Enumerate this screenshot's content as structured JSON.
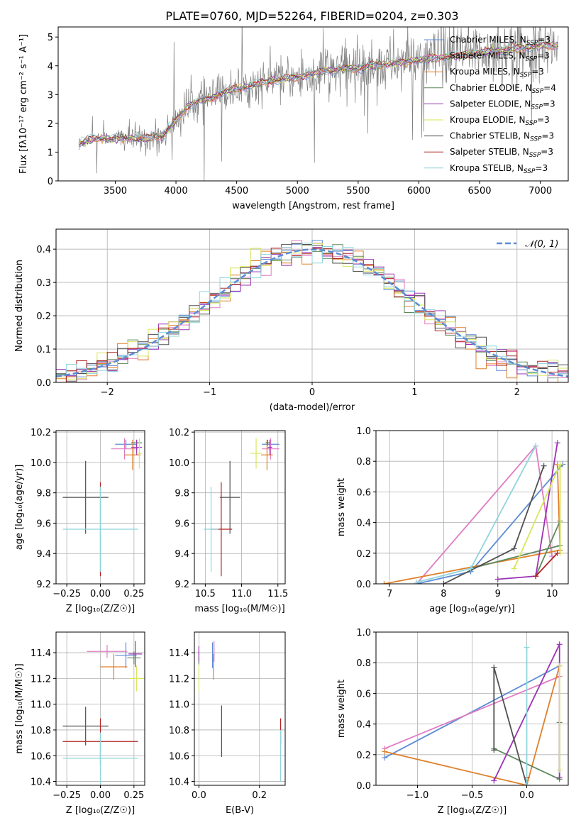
{
  "figure_title": "PLATE=0760, MJD=52264, FIBERID=0204, z=0.303",
  "colors": {
    "chabrier_miles": "#5b8bd6",
    "salpeter_miles": "#e07bc2",
    "kroupa_miles": "#e0802a",
    "chabrier_elodie": "#5e8a5e",
    "salpeter_elodie": "#9b32b4",
    "kroupa_elodie": "#d8e65a",
    "chabrier_stelib": "#505050",
    "salpeter_stelib": "#b22222",
    "kroupa_stelib": "#8fd4dc",
    "data_spectrum": "#808080",
    "gaussian": "#5b8bd6"
  },
  "chart_data": [
    {
      "id": "spectrum",
      "type": "line",
      "xlabel": "wavelength [Angstrom, rest frame]",
      "ylabel": "Flux [fλ10⁻¹⁷ erg cm⁻² s⁻¹ A⁻¹]",
      "xlim": [
        3030,
        7230
      ],
      "ylim": [
        0,
        5.35
      ],
      "xticks": [
        3500,
        4000,
        4500,
        5000,
        5500,
        6000,
        6500,
        7000
      ],
      "yticks": [
        0,
        1,
        2,
        3,
        4,
        5
      ],
      "grid": false,
      "legend_position": "top-right",
      "legend": [
        {
          "label": "Chabrier MILES, N_SSP=3",
          "color_key": "chabrier_miles"
        },
        {
          "label": "Salpeter MILES, N_SSP=3",
          "color_key": "salpeter_miles"
        },
        {
          "label": "Kroupa MILES, N_SSP=3",
          "color_key": "kroupa_miles"
        },
        {
          "label": "Chabrier ELODIE, N_SSP=4",
          "color_key": "chabrier_elodie"
        },
        {
          "label": "Salpeter ELODIE, N_SSP=3",
          "color_key": "salpeter_elodie"
        },
        {
          "label": "Kroupa ELODIE, N_SSP=3",
          "color_key": "kroupa_elodie"
        },
        {
          "label": "Chabrier STELIB, N_SSP=3",
          "color_key": "chabrier_stelib"
        },
        {
          "label": "Salpeter STELIB, N_SSP=3",
          "color_key": "salpeter_stelib"
        },
        {
          "label": "Kroupa STELIB, N_SSP=3",
          "color_key": "kroupa_stelib"
        }
      ],
      "continuum": {
        "x": [
          3200,
          3300,
          3400,
          3500,
          3600,
          3700,
          3800,
          3900,
          4000,
          4100,
          4200,
          4300,
          4400,
          4500,
          4600,
          4700,
          4800,
          4900,
          5000,
          5100,
          5200,
          5300,
          5400,
          5500,
          5600,
          5700,
          5800,
          5900,
          6000,
          6100,
          6200,
          6300,
          6400,
          6500,
          6600,
          6700,
          6800,
          6900,
          7000,
          7100
        ],
        "y": [
          1.3,
          1.45,
          1.5,
          1.45,
          1.5,
          1.45,
          1.5,
          1.6,
          2.1,
          2.6,
          2.8,
          2.9,
          3.1,
          3.2,
          3.3,
          3.4,
          3.5,
          3.55,
          3.6,
          3.7,
          3.8,
          3.85,
          3.9,
          3.9,
          4.0,
          4.05,
          4.1,
          4.15,
          4.2,
          4.25,
          4.3,
          4.35,
          4.4,
          4.45,
          4.5,
          4.55,
          4.6,
          4.65,
          4.7,
          4.7
        ]
      },
      "data_range": [
        3200,
        7150
      ]
    },
    {
      "id": "residual-histogram",
      "type": "bar",
      "xlabel": "(data-model)/error",
      "ylabel": "Normed distribution",
      "xlim": [
        -2.5,
        2.5
      ],
      "ylim": [
        0,
        0.46
      ],
      "xticks": [
        -2,
        -1,
        0,
        1,
        2
      ],
      "yticks": [
        0.0,
        0.1,
        0.2,
        0.3,
        0.4
      ],
      "grid": true,
      "legend_position": "top-right",
      "legend": [
        {
          "label": "𝒩(0, 1)",
          "color_key": "gaussian"
        }
      ],
      "bin_width": 0.1
    },
    {
      "id": "age-vs-Z",
      "type": "scatter",
      "xlabel": "Z [log₁₀(Z/Z☉)]",
      "ylabel": "age  [log₁₀(age/yr)]",
      "xlim": [
        -0.33,
        0.33
      ],
      "ylim": [
        9.2,
        10.21
      ],
      "xticks": [
        -0.25,
        0.0,
        0.25
      ],
      "yticks": [
        9.2,
        9.4,
        9.6,
        9.8,
        10.0,
        10.2
      ],
      "grid": true,
      "points": [
        {
          "key": "chabrier_miles",
          "x": 0.19,
          "y": 10.12,
          "xerr": 0.08,
          "yerr": 0.03
        },
        {
          "key": "salpeter_miles",
          "x": 0.18,
          "y": 10.09,
          "xerr": 0.1,
          "yerr": 0.07
        },
        {
          "key": "kroupa_miles",
          "x": 0.24,
          "y": 10.05,
          "xerr": 0.06,
          "yerr": 0.1
        },
        {
          "key": "chabrier_elodie",
          "x": 0.27,
          "y": 10.13,
          "xerr": 0.04,
          "yerr": 0.02
        },
        {
          "key": "salpeter_elodie",
          "x": 0.27,
          "y": 10.1,
          "xerr": 0.04,
          "yerr": 0.05
        },
        {
          "key": "kroupa_elodie",
          "x": 0.29,
          "y": 10.06,
          "xerr": 0.02,
          "yerr": 0.1
        },
        {
          "key": "chabrier_stelib",
          "x": -0.11,
          "y": 9.77,
          "xerr": 0.17,
          "yerr": 0.24
        },
        {
          "key": "salpeter_stelib",
          "x": 0.0,
          "y": 9.56,
          "xerr": 0.0,
          "yerr": 0.31
        },
        {
          "key": "kroupa_stelib",
          "x": 0.0,
          "y": 9.56,
          "xerr": 0.28,
          "yerr": 0.28
        }
      ]
    },
    {
      "id": "age-vs-mass",
      "type": "scatter",
      "xlabel": "mass [log₁₀(M/M☉)]",
      "ylabel": "",
      "xlim": [
        10.35,
        11.6
      ],
      "ylim": [
        9.2,
        10.21
      ],
      "xticks": [
        10.5,
        11.0,
        11.5
      ],
      "yticks": [
        9.2,
        9.4,
        9.6,
        9.8,
        10.0,
        10.2
      ],
      "grid": true,
      "points": [
        {
          "key": "chabrier_miles",
          "x": 11.4,
          "y": 10.12,
          "xerr": 0.12,
          "yerr": 0.03
        },
        {
          "key": "salpeter_miles",
          "x": 11.4,
          "y": 10.09,
          "xerr": 0.12,
          "yerr": 0.07
        },
        {
          "key": "kroupa_miles",
          "x": 11.35,
          "y": 10.05,
          "xerr": 0.08,
          "yerr": 0.1
        },
        {
          "key": "chabrier_elodie",
          "x": 11.36,
          "y": 10.13,
          "xerr": 0.03,
          "yerr": 0.02
        },
        {
          "key": "salpeter_elodie",
          "x": 11.39,
          "y": 10.1,
          "xerr": 0.03,
          "yerr": 0.05
        },
        {
          "key": "kroupa_elodie",
          "x": 11.2,
          "y": 10.06,
          "xerr": 0.08,
          "yerr": 0.1
        },
        {
          "key": "chabrier_stelib",
          "x": 10.84,
          "y": 9.77,
          "xerr": 0.14,
          "yerr": 0.24
        },
        {
          "key": "salpeter_stelib",
          "x": 10.72,
          "y": 9.56,
          "xerr": 0.15,
          "yerr": 0.31
        },
        {
          "key": "kroupa_stelib",
          "x": 10.58,
          "y": 9.56,
          "xerr": 0.1,
          "yerr": 0.28
        }
      ]
    },
    {
      "id": "massweight-vs-age",
      "type": "line",
      "xlabel": "age  [log₁₀(age/yr)]",
      "ylabel": "mass weight",
      "xlim": [
        6.75,
        10.3
      ],
      "ylim": [
        0,
        1.0
      ],
      "xticks": [
        7,
        8,
        9,
        10
      ],
      "yticks": [
        0.0,
        0.2,
        0.4,
        0.6,
        0.8,
        1.0
      ],
      "grid": true,
      "series": [
        {
          "key": "chabrier_miles",
          "x": [
            7.5,
            8.5,
            10.2
          ],
          "y": [
            0.0,
            0.08,
            0.78
          ]
        },
        {
          "key": "salpeter_miles",
          "x": [
            7.5,
            9.7,
            10.0
          ],
          "y": [
            0.0,
            0.9,
            0.18
          ]
        },
        {
          "key": "kroupa_miles",
          "x": [
            6.9,
            10.15,
            10.1
          ],
          "y": [
            0.0,
            0.22,
            0.78
          ]
        },
        {
          "key": "chabrier_elodie",
          "x": [
            8.5,
            10.15,
            10.15,
            9.7
          ],
          "y": [
            0.1,
            0.25,
            0.41,
            0.05
          ]
        },
        {
          "key": "salpeter_elodie",
          "x": [
            9.0,
            9.7,
            10.1
          ],
          "y": [
            0.03,
            0.05,
            0.92
          ]
        },
        {
          "key": "kroupa_elodie",
          "x": [
            9.3,
            10.15,
            10.15
          ],
          "y": [
            0.1,
            0.78,
            0.2
          ]
        },
        {
          "key": "chabrier_stelib",
          "x": [
            8.0,
            9.3,
            9.85
          ],
          "y": [
            0.0,
            0.23,
            0.77
          ]
        },
        {
          "key": "salpeter_stelib",
          "x": [
            9.7,
            10.1
          ],
          "y": [
            0.05,
            0.2
          ]
        },
        {
          "key": "kroupa_stelib",
          "x": [
            7.5,
            8.5,
            9.7
          ],
          "y": [
            0.01,
            0.1,
            0.9
          ]
        }
      ]
    },
    {
      "id": "mass-vs-Z",
      "type": "scatter",
      "xlabel": "Z [log₁₀(Z/Z☉)]",
      "ylabel": "mass [log₁₀(M/M☉)]",
      "xlim": [
        -0.33,
        0.33
      ],
      "ylim": [
        10.37,
        11.56
      ],
      "xticks": [
        -0.25,
        0.0,
        0.25
      ],
      "yticks": [
        10.4,
        10.6,
        10.8,
        11.0,
        11.2,
        11.4
      ],
      "grid": true,
      "points": [
        {
          "key": "chabrier_miles",
          "x": 0.19,
          "y": 11.38,
          "xerr": 0.08,
          "yerr": 0.1
        },
        {
          "key": "salpeter_miles",
          "x": 0.05,
          "y": 11.41,
          "xerr": 0.15,
          "yerr": 0.05
        },
        {
          "key": "kroupa_miles",
          "x": 0.1,
          "y": 11.29,
          "xerr": 0.1,
          "yerr": 0.1
        },
        {
          "key": "chabrier_elodie",
          "x": 0.25,
          "y": 11.36,
          "xerr": 0.05,
          "yerr": 0.05
        },
        {
          "key": "salpeter_elodie",
          "x": 0.26,
          "y": 11.39,
          "xerr": 0.05,
          "yerr": 0.1
        },
        {
          "key": "kroupa_elodie",
          "x": 0.27,
          "y": 11.2,
          "xerr": 0.05,
          "yerr": 0.1
        },
        {
          "key": "chabrier_stelib",
          "x": -0.11,
          "y": 10.83,
          "xerr": 0.17,
          "yerr": 0.15
        },
        {
          "key": "salpeter_stelib",
          "x": 0.0,
          "y": 10.71,
          "xerr": 0.28,
          "yerr": 0.18
        },
        {
          "key": "kroupa_stelib",
          "x": 0.0,
          "y": 10.58,
          "xerr": 0.28,
          "yerr": 0.2
        }
      ]
    },
    {
      "id": "mass-vs-EBV",
      "type": "scatter",
      "xlabel": "E(B-V)",
      "ylabel": "",
      "xlim": [
        -0.015,
        0.285
      ],
      "ylim": [
        10.37,
        11.56
      ],
      "xticks": [
        0.0,
        0.2
      ],
      "yticks": [
        10.4,
        10.6,
        10.8,
        11.0,
        11.2,
        11.4
      ],
      "grid": true,
      "points": [
        {
          "key": "chabrier_miles",
          "x": 0.045,
          "y": 11.38,
          "xerr": 0.0,
          "yerr": 0.1
        },
        {
          "key": "salpeter_miles",
          "x": 0.05,
          "y": 11.41,
          "xerr": 0.0,
          "yerr": 0.08
        },
        {
          "key": "kroupa_miles",
          "x": 0.048,
          "y": 11.29,
          "xerr": 0.0,
          "yerr": 0.1
        },
        {
          "key": "chabrier_elodie",
          "x": 0.0,
          "y": 11.36,
          "xerr": 0.0,
          "yerr": 0.05
        },
        {
          "key": "salpeter_elodie",
          "x": 0.0,
          "y": 11.39,
          "xerr": 0.0,
          "yerr": 0.06
        },
        {
          "key": "kroupa_elodie",
          "x": 0.0,
          "y": 11.2,
          "xerr": 0.0,
          "yerr": 0.1
        },
        {
          "key": "chabrier_stelib",
          "x": 0.075,
          "y": 10.79,
          "xerr": 0.0,
          "yerr": 0.2
        },
        {
          "key": "salpeter_stelib",
          "x": 0.27,
          "y": 10.79,
          "xerr": 0.0,
          "yerr": 0.1
        },
        {
          "key": "kroupa_stelib",
          "x": 0.27,
          "y": 10.6,
          "xerr": 0.0,
          "yerr": 0.2
        }
      ]
    },
    {
      "id": "massweight-vs-Z",
      "type": "line",
      "xlabel": "Z [log₁₀(Z/Z☉)]",
      "ylabel": "mass weight",
      "xlim": [
        -1.38,
        0.38
      ],
      "ylim": [
        0,
        1.0
      ],
      "xticks": [
        -1.0,
        -0.5,
        0.0
      ],
      "yticks": [
        0.0,
        0.2,
        0.4,
        0.6,
        0.8,
        1.0
      ],
      "grid": true,
      "series": [
        {
          "key": "chabrier_miles",
          "x": [
            -1.3,
            0.3
          ],
          "y": [
            0.18,
            0.78
          ]
        },
        {
          "key": "salpeter_miles",
          "x": [
            -1.3,
            0.3
          ],
          "y": [
            0.24,
            0.71
          ]
        },
        {
          "key": "kroupa_miles",
          "x": [
            -1.3,
            0.0,
            0.3
          ],
          "y": [
            0.22,
            0.0,
            0.78
          ]
        },
        {
          "key": "chabrier_elodie",
          "x": [
            -0.3,
            0.3,
            0.3
          ],
          "y": [
            0.24,
            0.04,
            0.41
          ]
        },
        {
          "key": "salpeter_elodie",
          "x": [
            -0.3,
            0.3,
            0.3
          ],
          "y": [
            0.03,
            0.92,
            0.05
          ]
        },
        {
          "key": "kroupa_elodie",
          "x": [
            0.3,
            0.3
          ],
          "y": [
            0.1,
            0.78
          ]
        },
        {
          "key": "chabrier_stelib",
          "x": [
            -0.3,
            -0.3,
            0.0
          ],
          "y": [
            0.23,
            0.77,
            0.0
          ]
        },
        {
          "key": "salpeter_stelib",
          "x": [
            0.0,
            0.0
          ],
          "y": [
            0.0,
            0.05
          ]
        },
        {
          "key": "kroupa_stelib",
          "x": [
            0.0,
            0.0
          ],
          "y": [
            0.0,
            0.9
          ]
        }
      ]
    }
  ]
}
